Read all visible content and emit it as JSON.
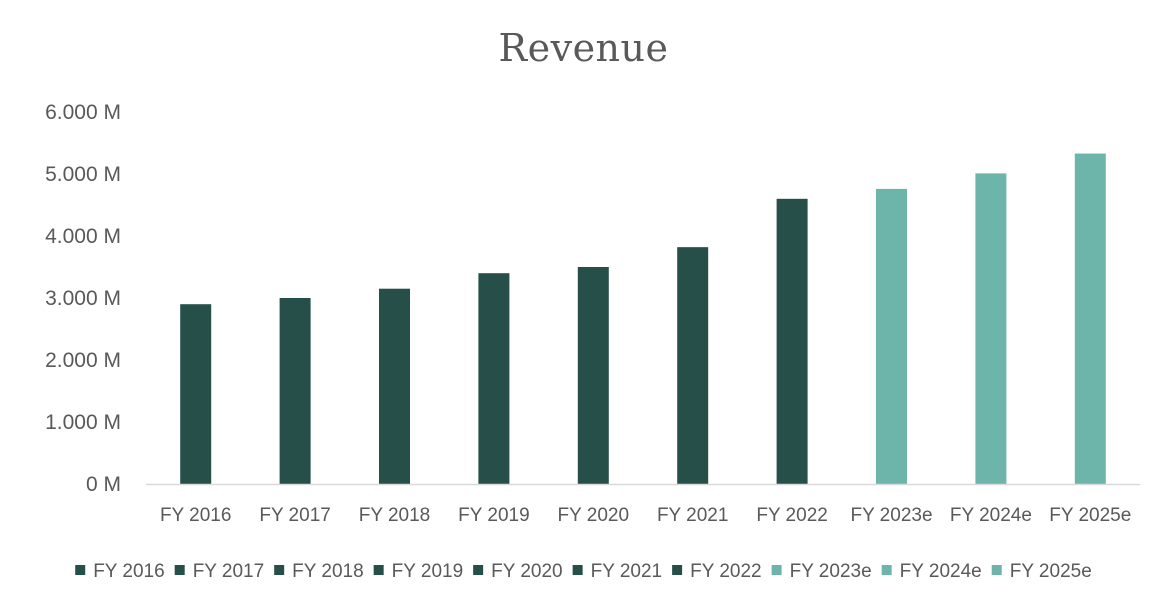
{
  "chart_data": {
    "type": "bar",
    "title": "Revenue",
    "xlabel": "",
    "ylabel": "",
    "categories": [
      "FY 2016",
      "FY 2017",
      "FY 2018",
      "FY 2019",
      "FY 2020",
      "FY 2021",
      "FY 2022",
      "FY 2023e",
      "FY 2024e",
      "FY 2025e"
    ],
    "values": [
      2.9,
      3.0,
      3.15,
      3.4,
      3.5,
      3.82,
      4.6,
      4.76,
      5.01,
      5.33
    ],
    "bar_colors": [
      "#264f4a",
      "#264f4a",
      "#264f4a",
      "#264f4a",
      "#264f4a",
      "#264f4a",
      "#264f4a",
      "#6db5aa",
      "#6db5aa",
      "#6db5aa"
    ],
    "ylim": [
      0,
      6
    ],
    "yticks": [
      0,
      1,
      2,
      3,
      4,
      5,
      6
    ],
    "ytick_labels": [
      "0 M",
      "1.000 M",
      "2.000 M",
      "3.000 M",
      "4.000 M",
      "5.000 M",
      "6.000 M"
    ],
    "grid": false,
    "legend_position": "bottom",
    "legend": [
      "FY 2016",
      "FY 2017",
      "FY 2018",
      "FY 2019",
      "FY 2020",
      "FY 2021",
      "FY 2022",
      "FY 2023e",
      "FY 2024e",
      "FY 2025e"
    ],
    "colors": {
      "actual": "#264f4a",
      "estimate": "#6db5aa",
      "axis": "#d9d9d9",
      "text": "#595959"
    }
  }
}
